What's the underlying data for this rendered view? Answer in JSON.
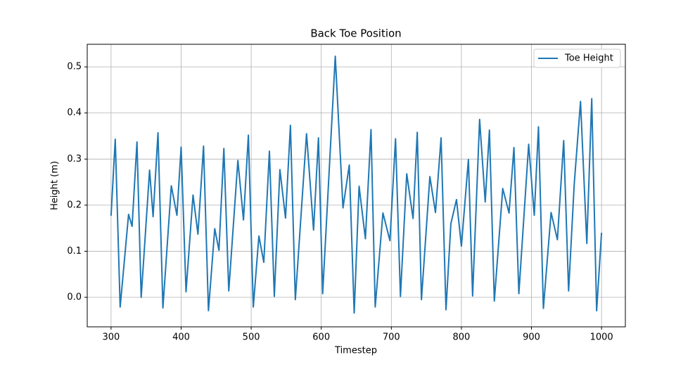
{
  "chart_data": {
    "type": "line",
    "title": "Back Toe Position",
    "x_label": "Timestep",
    "y_label": "Height (m)",
    "x": [
      300,
      306,
      313,
      325,
      330,
      337,
      343,
      355,
      360,
      367,
      374,
      386,
      394,
      400,
      407,
      417,
      424,
      432,
      439,
      448,
      454,
      461,
      468,
      481,
      489,
      496,
      503,
      511,
      518,
      526,
      533,
      541,
      549,
      556,
      563,
      579,
      589,
      596,
      602,
      620,
      631,
      640,
      647,
      654,
      663,
      671,
      677,
      688,
      698,
      706,
      713,
      722,
      731,
      737,
      743,
      755,
      763,
      771,
      778,
      785,
      793,
      800,
      810,
      816,
      826,
      834,
      840,
      847,
      859,
      868,
      875,
      882,
      896,
      904,
      910,
      917,
      928,
      937,
      946,
      953,
      961,
      970,
      979,
      986,
      993,
      1000
    ],
    "series": [
      {
        "name": "Toe Height",
        "color": "#1f77b4",
        "values": [
          0.177,
          0.343,
          -0.021,
          0.18,
          0.154,
          0.337,
          0.0,
          0.276,
          0.175,
          0.357,
          -0.023,
          0.242,
          0.178,
          0.326,
          0.012,
          0.222,
          0.137,
          0.328,
          -0.029,
          0.149,
          0.102,
          0.323,
          0.014,
          0.297,
          0.168,
          0.352,
          -0.021,
          0.133,
          0.076,
          0.317,
          0.002,
          0.277,
          0.172,
          0.373,
          -0.005,
          0.355,
          0.146,
          0.346,
          0.008,
          0.523,
          0.194,
          0.287,
          -0.034,
          0.241,
          0.127,
          0.364,
          -0.021,
          0.183,
          0.123,
          0.344,
          0.002,
          0.268,
          0.171,
          0.358,
          -0.005,
          0.262,
          0.184,
          0.346,
          -0.027,
          0.16,
          0.212,
          0.111,
          0.299,
          0.003,
          0.386,
          0.207,
          0.363,
          -0.008,
          0.236,
          0.183,
          0.325,
          0.008,
          0.332,
          0.178,
          0.37,
          -0.024,
          0.184,
          0.125,
          0.34,
          0.014,
          0.245,
          0.425,
          0.117,
          0.431,
          -0.029,
          0.14
        ]
      }
    ],
    "xlim": [
      266,
      1034
    ],
    "ylim": [
      -0.064,
      0.549
    ],
    "xticks": [
      300,
      400,
      500,
      600,
      700,
      800,
      900,
      1000
    ],
    "yticks": [
      {
        "value": 0,
        "label": "0.0"
      },
      0.1,
      0.2,
      0.3,
      0.4,
      0.5
    ],
    "grid": true,
    "legend": "upper right"
  }
}
